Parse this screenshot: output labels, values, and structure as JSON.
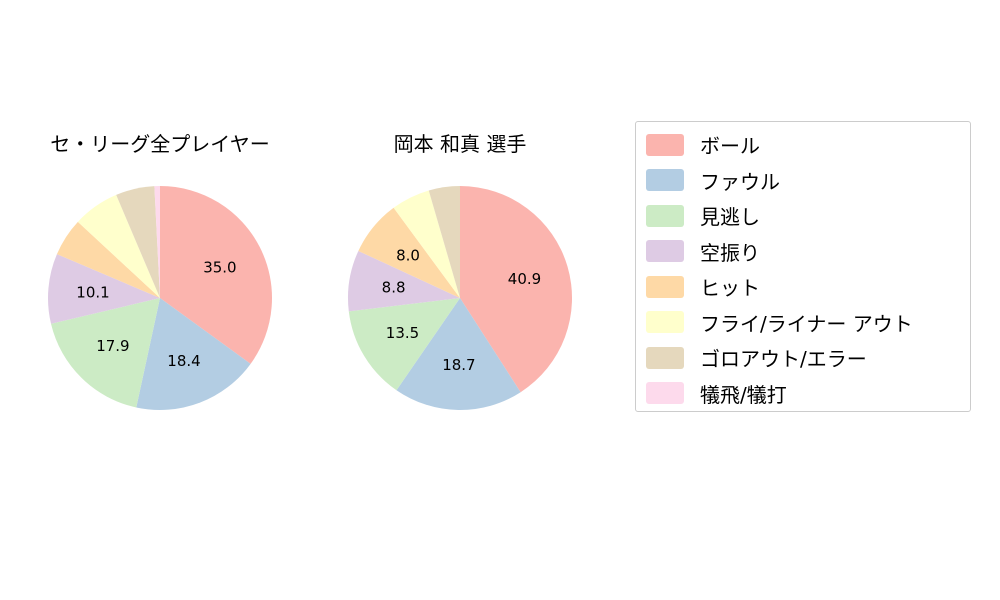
{
  "figure": {
    "background": "#ffffff"
  },
  "legend": {
    "items": [
      {
        "label": "ボール",
        "color": "#fbb4ae"
      },
      {
        "label": "ファウル",
        "color": "#b3cde3"
      },
      {
        "label": "見逃し",
        "color": "#ccebc5"
      },
      {
        "label": "空振り",
        "color": "#decbe4"
      },
      {
        "label": "ヒット",
        "color": "#fed9a6"
      },
      {
        "label": "フライ/ライナー アウト",
        "color": "#ffffcc"
      },
      {
        "label": "ゴロアウト/エラー",
        "color": "#e5d8bd"
      },
      {
        "label": "犠飛/犠打",
        "color": "#fddaec"
      }
    ]
  },
  "chart_data": [
    {
      "type": "pie",
      "title": "セ・リーグ全プレイヤー",
      "start_angle_deg": 90,
      "direction": "clockwise",
      "label_rule": "percent shown only for slices >= 8.0",
      "slices": [
        {
          "category": "ボール",
          "value": 35.0,
          "label": "35.0",
          "color": "#fbb4ae"
        },
        {
          "category": "ファウル",
          "value": 18.4,
          "label": "18.4",
          "color": "#b3cde3"
        },
        {
          "category": "見逃し",
          "value": 17.9,
          "label": "17.9",
          "color": "#ccebc5"
        },
        {
          "category": "空振り",
          "value": 10.1,
          "label": "10.1",
          "color": "#decbe4"
        },
        {
          "category": "ヒット",
          "value": 5.5,
          "label": "",
          "color": "#fed9a6"
        },
        {
          "category": "フライ/ライナー アウト",
          "value": 6.7,
          "label": "",
          "color": "#ffffcc"
        },
        {
          "category": "ゴロアウト/エラー",
          "value": 5.6,
          "label": "",
          "color": "#e5d8bd"
        },
        {
          "category": "犠飛/犠打",
          "value": 0.8,
          "label": "",
          "color": "#fddaec"
        }
      ]
    },
    {
      "type": "pie",
      "title": "岡本 和真  選手",
      "start_angle_deg": 90,
      "direction": "clockwise",
      "label_rule": "percent shown only for slices >= 8.0",
      "slices": [
        {
          "category": "ボール",
          "value": 40.9,
          "label": "40.9",
          "color": "#fbb4ae"
        },
        {
          "category": "ファウル",
          "value": 18.7,
          "label": "18.7",
          "color": "#b3cde3"
        },
        {
          "category": "見逃し",
          "value": 13.5,
          "label": "13.5",
          "color": "#ccebc5"
        },
        {
          "category": "空振り",
          "value": 8.8,
          "label": "8.8",
          "color": "#decbe4"
        },
        {
          "category": "ヒット",
          "value": 8.0,
          "label": "8.0",
          "color": "#fed9a6"
        },
        {
          "category": "フライ/ライナー アウト",
          "value": 5.6,
          "label": "",
          "color": "#ffffcc"
        },
        {
          "category": "ゴロアウト/エラー",
          "value": 4.5,
          "label": "",
          "color": "#e5d8bd"
        }
      ]
    }
  ]
}
